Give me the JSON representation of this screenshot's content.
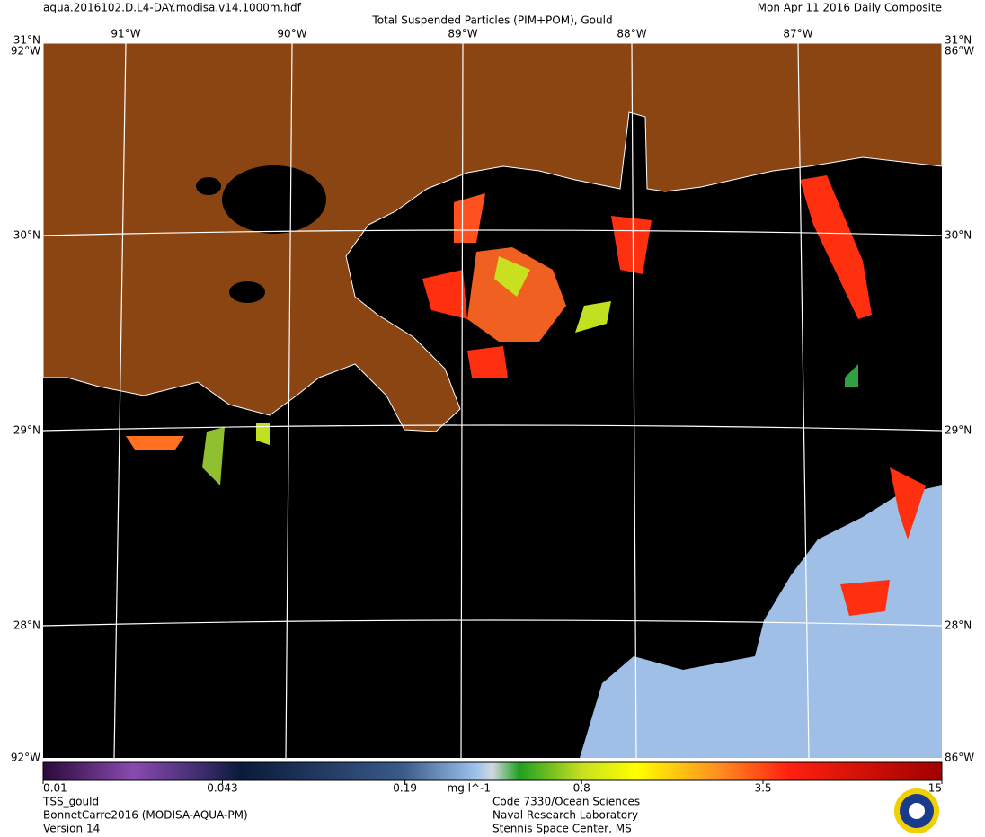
{
  "header": {
    "file": "aqua.2016102.D.L4-DAY.modisa.v14.1000m.hdf",
    "title": "Total Suspended Particles (PIM+POM), Gould",
    "date": "Mon Apr 11 2016 Daily Composite"
  },
  "map": {
    "lon_labels": [
      "91°W",
      "90°W",
      "89°W",
      "88°W",
      "87°W"
    ],
    "lat_labels": [
      "30°N",
      "29°N",
      "28°N"
    ],
    "corner_labels": [
      "31°N",
      "92°W",
      "86°W"
    ]
  },
  "colorbar": {
    "range": [
      0.01,
      15
    ],
    "log": true,
    "ticks": [
      0.01,
      0.043,
      0.19,
      0.8,
      3.5,
      15
    ],
    "unit": "mg l^-1"
  },
  "footer": {
    "left": [
      "TSS_gould",
      "BonnetCarre2016 (MODISA-AQUA-PM)",
      "Version 14"
    ],
    "right": [
      "Code 7330/Ocean Sciences",
      "Naval Research Laboratory",
      "Stennis Space Center, MS"
    ]
  }
}
